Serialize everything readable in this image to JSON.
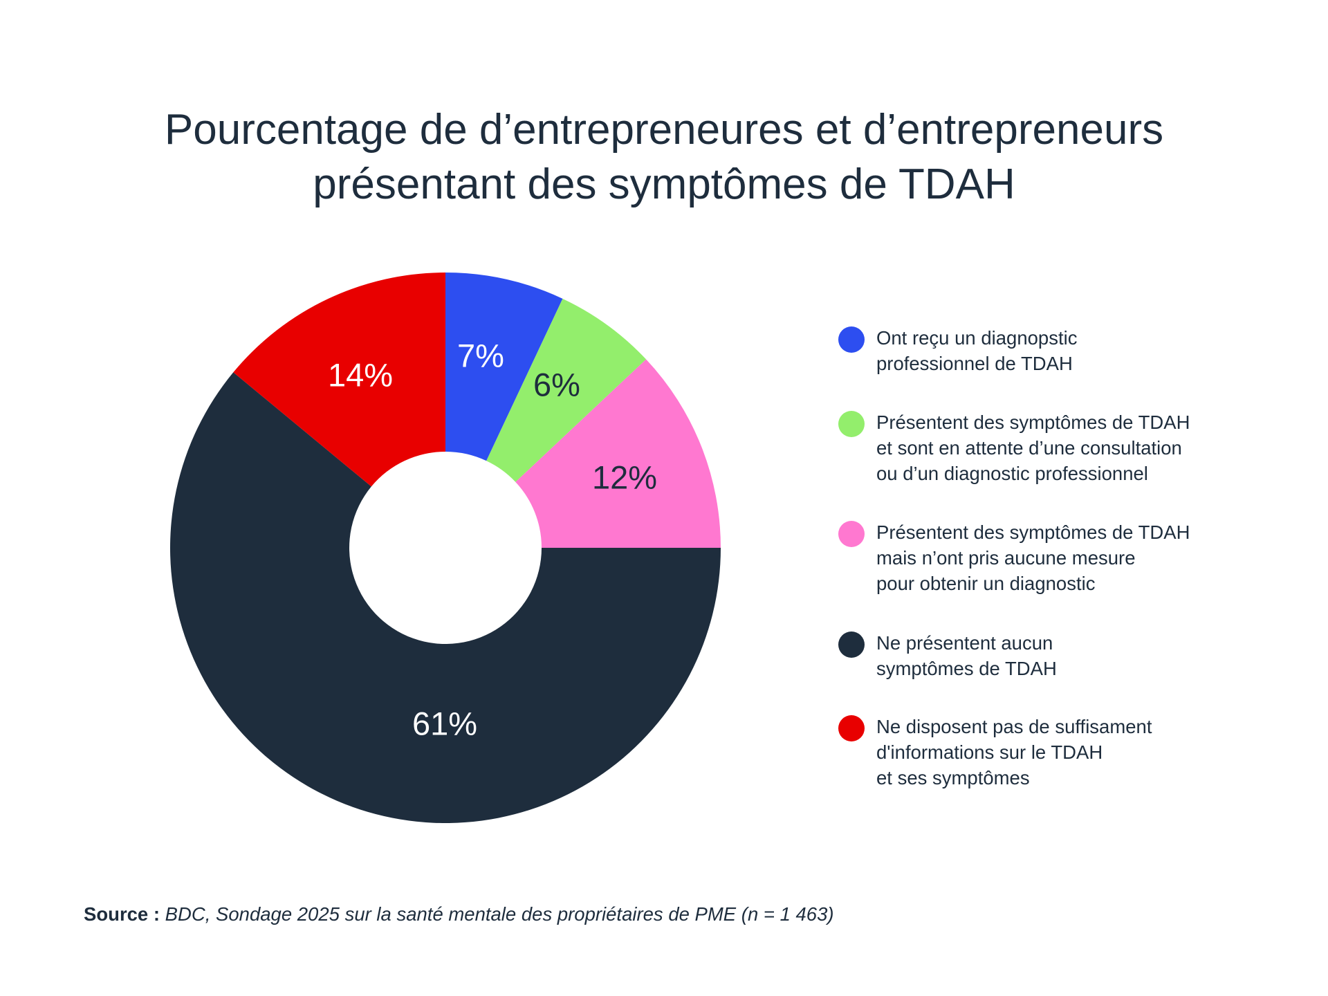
{
  "chart_data": {
    "type": "pie",
    "donut": true,
    "title": [
      "Pourcentage de d’entrepreneures et d’entrepreneurs",
      "présentant des symptômes de TDAH"
    ],
    "slices": [
      {
        "label": "Ont reçu un diagnopstic\nprofessionnel de TDAH",
        "value": 7,
        "data_label": "7%",
        "color": "#2d4ef0",
        "label_color": "#ffffff"
      },
      {
        "label": "Présentent des symptômes de TDAH\net sont en attente d’une consultation\nou d’un diagnostic professionnel",
        "value": 6,
        "data_label": "6%",
        "color": "#93ee6c",
        "label_color": "#1e2d3d"
      },
      {
        "label": "Présentent des symptômes de TDAH\nmais n’ont pris aucune mesure\npour obtenir un diagnostic",
        "value": 12,
        "data_label": "12%",
        "color": "#ff78d0",
        "label_color": "#1e2d3d"
      },
      {
        "label": "Ne présentent aucun\nsymptômes de TDAH",
        "value": 61,
        "data_label": "61%",
        "color": "#1e2d3d",
        "label_color": "#ffffff"
      },
      {
        "label": "Ne disposent pas de suffisament\nd'informations sur le TDAH\net ses symptômes",
        "value": 14,
        "data_label": "14%",
        "color": "#e80000",
        "label_color": "#ffffff"
      }
    ],
    "start": "top",
    "direction": "clockwise",
    "legend_position": "right"
  },
  "source": {
    "label": "Source :",
    "text": "BDC, Sondage 2025 sur la santé mentale des propriétaires de PME (n = 1 463)"
  }
}
